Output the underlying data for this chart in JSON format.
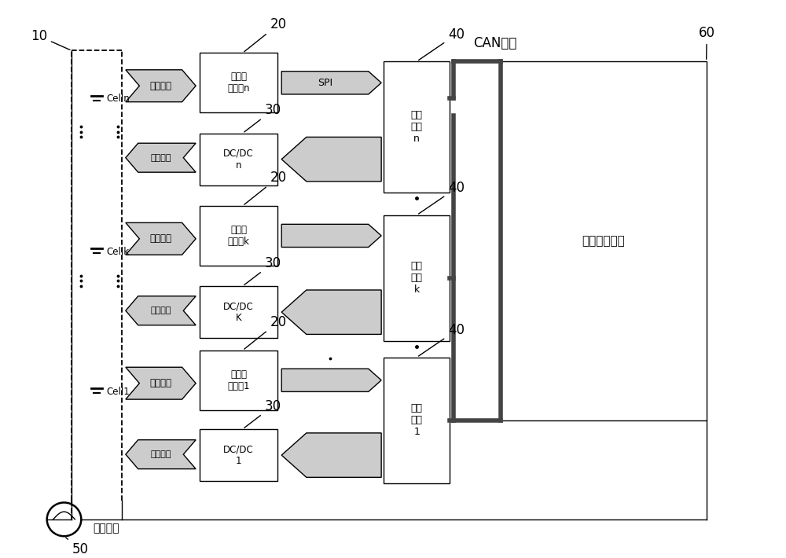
{
  "line_color": "#000000",
  "box_fill": "#ffffff",
  "arrow_fill": "#cccccc",
  "thick_line_color": "#444444",
  "rows": [
    {
      "label_volt": "电压检\n测电路n",
      "label_dc": "DC/DC\nn",
      "label_cell": "Celln",
      "label_ctrl_chip": "主控\n芯片\nn"
    },
    {
      "label_volt": "电压检\n测电路k",
      "label_dc": "DC/DC\nK",
      "label_cell": "Cellk",
      "label_ctrl_chip": "主控\n芯片\nk"
    },
    {
      "label_volt": "电压检\n测电路1",
      "label_dc": "DC/DC\n1",
      "label_cell": "Cell1",
      "label_ctrl_chip": "主控\n芯片\n1"
    }
  ],
  "label_state": "状态监测",
  "label_balance": "均衡控制",
  "label_SPI": "SPI",
  "label_CAN": "CAN总线",
  "label_data_chip": "数据处理芯片",
  "label_current": "电流检测",
  "ref10": "10",
  "ref20": "20",
  "ref30": "30",
  "ref40": "40",
  "ref50": "50",
  "ref60": "60",
  "figsize": [
    10.0,
    7.1
  ],
  "dpi": 100,
  "xlim": [
    0,
    10
  ],
  "ylim": [
    0,
    7.1
  ]
}
